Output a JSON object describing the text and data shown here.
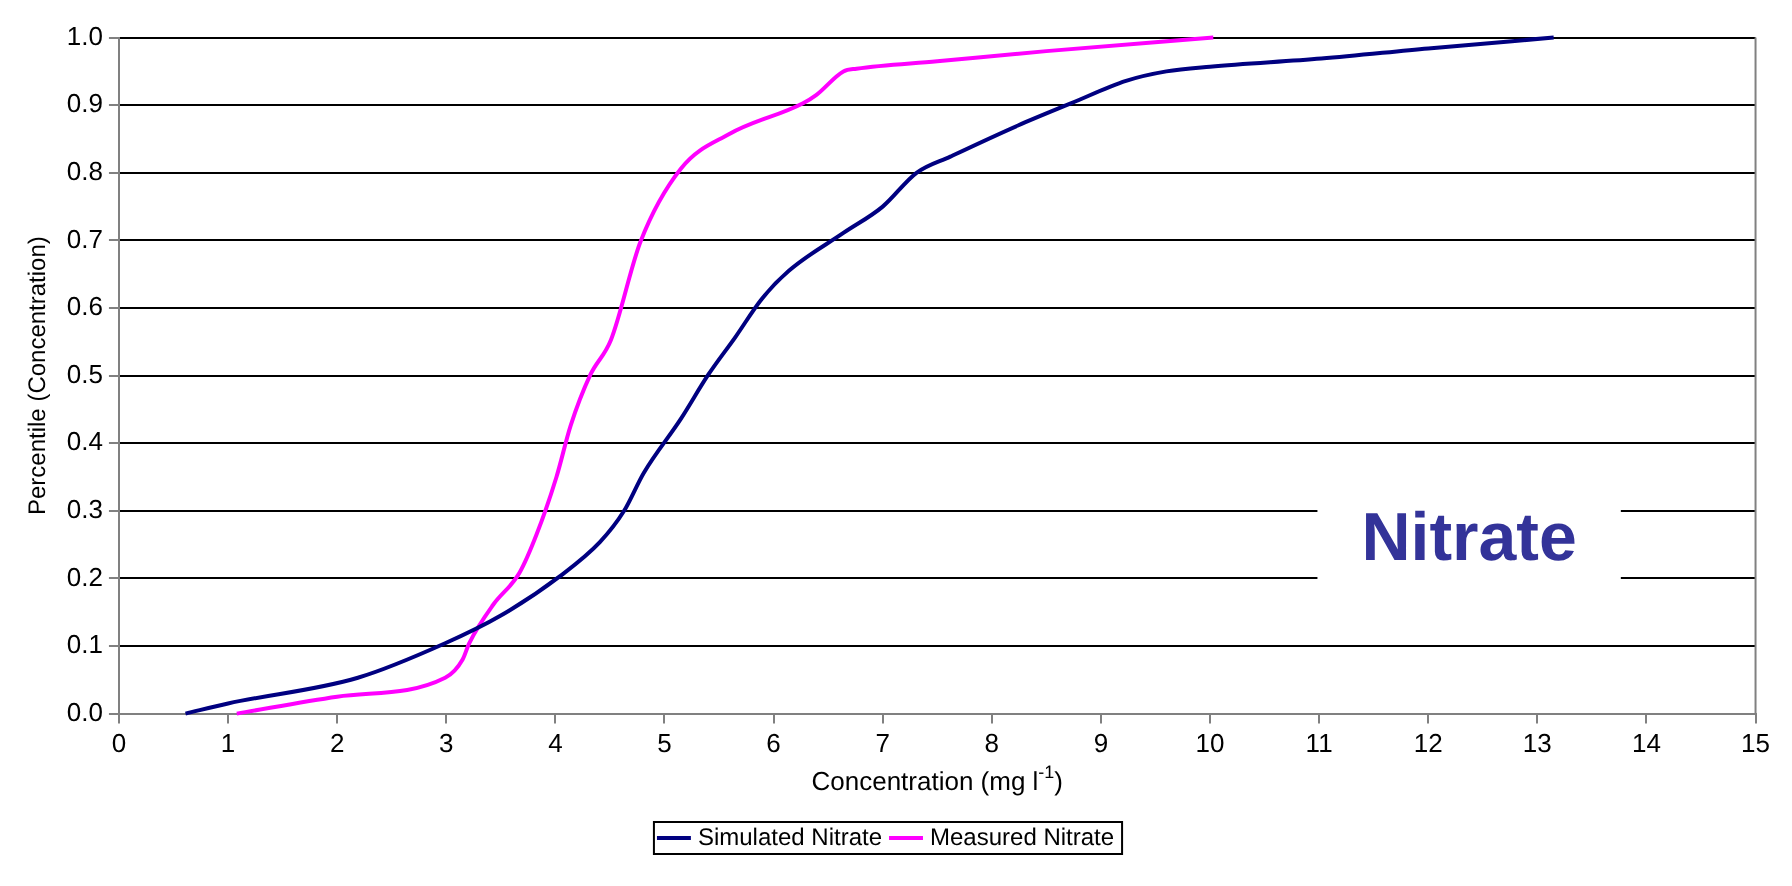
{
  "chart_data": {
    "type": "line",
    "title": "Nitrate",
    "xlabel": "Concentration (mg l$^{-1}$)",
    "ylabel": "Percentile (Concentration)",
    "xlim": [
      0,
      15
    ],
    "xticks": [
      0,
      1,
      2,
      3,
      4,
      5,
      6,
      7,
      8,
      9,
      10,
      11,
      12,
      13,
      14,
      15
    ],
    "ylim": [
      0,
      1
    ],
    "yticks": [
      {
        "value": 0,
        "label": "0.0"
      },
      0.1,
      0.2,
      0.3,
      0.4,
      0.5,
      0.6,
      0.7,
      0.8,
      0.9,
      {
        "value": 1,
        "label": "1.0"
      }
    ],
    "grid": "y",
    "legend": "bottom",
    "marker": "none",
    "line_style": "solid",
    "series": [
      {
        "name": "Simulated Nitrate",
        "color": "#000080",
        "x": [
          0.61,
          1,
          2.19,
          2.99,
          3.5,
          4.04,
          4.41,
          4.63,
          4.81,
          5.15,
          5.4,
          5.65,
          5.89,
          6.14,
          6.64,
          7,
          7.31,
          7.62,
          8.24,
          8.73,
          9.23,
          9.6,
          10,
          11.02,
          12,
          13.15
        ],
        "values": [
          0,
          0.015,
          0.053,
          0.104,
          0.145,
          0.203,
          0.254,
          0.3,
          0.356,
          0.436,
          0.501,
          0.557,
          0.613,
          0.655,
          0.711,
          0.75,
          0.8,
          0.824,
          0.87,
          0.903,
          0.936,
          0.95,
          0.957,
          0.969,
          0.984,
          1
        ]
      },
      {
        "name": "Measured Nitrate",
        "color": "#ff00ff",
        "x": [
          1.08,
          2,
          2.99,
          3.15,
          3.21,
          3.43,
          3.67,
          3.83,
          4.01,
          4.14,
          4.32,
          4.51,
          4.78,
          5.15,
          5.59,
          6.27,
          6.39,
          6.64,
          6.76,
          7.5,
          8.5,
          10.03
        ],
        "values": [
          0,
          0.025,
          0.053,
          0.08,
          0.104,
          0.161,
          0.208,
          0.266,
          0.35,
          0.426,
          0.501,
          0.553,
          0.698,
          0.806,
          0.857,
          0.903,
          0.915,
          0.95,
          0.954,
          0.965,
          0.98,
          1
        ]
      }
    ]
  }
}
